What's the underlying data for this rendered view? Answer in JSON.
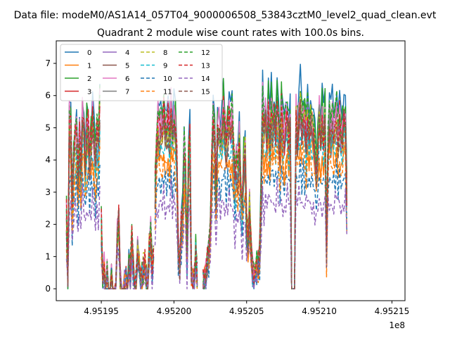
{
  "chart_data": {
    "type": "line",
    "suptitle": "Data file: modeM0/AS1A14_057T04_9000006508_53843cztM0_level2_quad_clean.evt",
    "title": "Quadrant 2 module wise count rates with 100.0s bins.",
    "xlabel": "",
    "ylabel": "",
    "x_offset_label": "1e8",
    "xlim": [
      495191900.0,
      495215900.0
    ],
    "ylim": [
      -0.37,
      7.7
    ],
    "x_ticks": [
      495195000.0,
      495200000.0,
      495205000.0,
      495210000.0,
      495215000.0
    ],
    "x_tick_labels": [
      "4.95195",
      "4.95200",
      "4.95205",
      "4.95210",
      "4.95215"
    ],
    "y_ticks": [
      0,
      1,
      2,
      3,
      4,
      5,
      6,
      7
    ],
    "y_tick_labels": [
      "0",
      "1",
      "2",
      "3",
      "4",
      "5",
      "6",
      "7"
    ],
    "grid": false,
    "legend_placement": "top-left",
    "legend_columns": 4,
    "x_step": 100,
    "segments": [
      {
        "start": 495192600.0,
        "values": [
          2.3,
          0.3,
          5.2,
          4.9,
          2.6,
          3.8,
          4.6,
          5.0,
          3.4,
          4.7,
          3.9,
          5.3,
          4.8,
          3.6,
          4.9,
          5.1,
          4.2,
          4.6,
          5.2,
          4.4,
          3.9,
          4.8,
          4.5,
          5.8
        ]
      },
      {
        "start": 495195000.0,
        "values": [
          2.0,
          0.4,
          0.6,
          0.0,
          0.4,
          0.0,
          0.0,
          0.5,
          0.0,
          0.0,
          0.3,
          1.6,
          2.1,
          0.3,
          0.0,
          0.0,
          0.1,
          0.2,
          0.0,
          0.6,
          0.4,
          1.5,
          0.8,
          0.0,
          0.2,
          1.1,
          0.7,
          0.2,
          0.3,
          0.6,
          0.8,
          0.3,
          0.1,
          1.2,
          1.7,
          0.7,
          0.9
        ]
      },
      {
        "start": 495198700.0,
        "values": [
          3.1,
          4.5,
          5.2,
          4.8,
          5.0,
          4.7,
          5.5,
          5.0,
          4.8,
          5.3,
          4.9,
          5.6,
          4.5,
          5.2,
          5.0,
          4.1,
          1.3,
          0.8,
          1.9,
          2.2,
          4.3,
          3.5,
          0.9,
          4.2,
          4.7,
          0.3,
          0.1,
          0.2,
          1.1,
          0.4
        ]
      },
      {
        "start": 495202000.0,
        "values": [
          0.1,
          0.3,
          0.4,
          0.8,
          1.1,
          1.6,
          3.8,
          5.4,
          4.7,
          2.9,
          5.2,
          5.0,
          4.4,
          4.8,
          5.6,
          5.1,
          4.6,
          4.9,
          5.2,
          4.7,
          5.3,
          4.2,
          3.4,
          4.1,
          3.7,
          4.6,
          3.0,
          2.5,
          3.9,
          4.3,
          2.0,
          1.6,
          2.6,
          1.3,
          0.6,
          0.4,
          0.3,
          0.9,
          0.7,
          1.1,
          2.9,
          5.8,
          4.8,
          5.4,
          4.7,
          5.6,
          4.6,
          5.9,
          5.1,
          5.4,
          4.9,
          5.7,
          5.2,
          4.4,
          5.6,
          5.0,
          4.6,
          5.2,
          5.5,
          4.8,
          5.3,
          0.0,
          0.0,
          0.0,
          5.5,
          4.9,
          5.3,
          5.8,
          5.0,
          5.4,
          5.2,
          4.8,
          5.5,
          4.6,
          5.3,
          5.1,
          4.9,
          4.5,
          3.8,
          4.4,
          5.5,
          4.7,
          5.3,
          4.8,
          5.6,
          1.2,
          4.6,
          5.3,
          4.8,
          5.4,
          4.9,
          5.1,
          5.6,
          4.7,
          5.3,
          5.0,
          4.8,
          5.4,
          5.2,
          3.0
        ]
      }
    ],
    "series": [
      {
        "name": "0",
        "color": "#1f77b4",
        "dash": "solid",
        "scale": 1.12
      },
      {
        "name": "1",
        "color": "#ff7f0e",
        "dash": "solid",
        "scale": 0.8
      },
      {
        "name": "2",
        "color": "#2ca02c",
        "dash": "solid",
        "scale": 1.08
      },
      {
        "name": "3",
        "color": "#d62728",
        "dash": "solid",
        "scale": 1.0
      },
      {
        "name": "4",
        "color": "#9467bd",
        "dash": "solid",
        "scale": 0.97
      },
      {
        "name": "5",
        "color": "#8c564b",
        "dash": "solid",
        "scale": 0.93
      },
      {
        "name": "6",
        "color": "#e377c2",
        "dash": "solid",
        "scale": 1.02
      },
      {
        "name": "7",
        "color": "#7f7f7f",
        "dash": "solid",
        "scale": 0.95
      },
      {
        "name": "8",
        "color": "#bcbd22",
        "dash": "dashed",
        "scale": 0.98
      },
      {
        "name": "9",
        "color": "#17becf",
        "dash": "dashed",
        "scale": 0.86
      },
      {
        "name": "10",
        "color": "#1f77b4",
        "dash": "dashed",
        "scale": 0.66
      },
      {
        "name": "11",
        "color": "#ff7f0e",
        "dash": "dashed",
        "scale": 0.76
      },
      {
        "name": "12",
        "color": "#2ca02c",
        "dash": "dashed",
        "scale": 1.04
      },
      {
        "name": "13",
        "color": "#d62728",
        "dash": "dashed",
        "scale": 0.99
      },
      {
        "name": "14",
        "color": "#9467bd",
        "dash": "dashed",
        "scale": 0.52
      },
      {
        "name": "15",
        "color": "#8c564b",
        "dash": "dashed",
        "scale": 0.94
      }
    ]
  }
}
